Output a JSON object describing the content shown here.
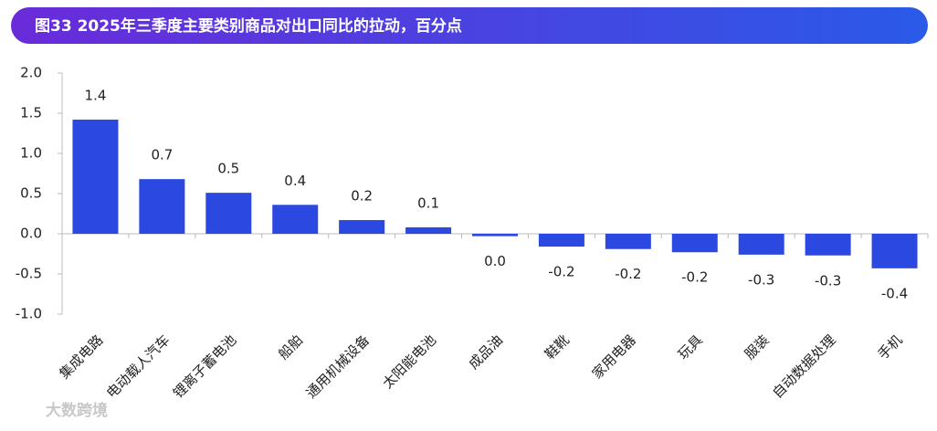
{
  "chart_data": {
    "type": "bar",
    "title": "图33 2025年三季度主要类别商品对出口同比的拉动，百分点",
    "categories": [
      "集成电路",
      "电动载人汽车",
      "锂离子蓄电池",
      "船舶",
      "通用机械设备",
      "太阳能电池",
      "成品油",
      "鞋靴",
      "家用电器",
      "玩具",
      "服装",
      "自动数据处理",
      "手机"
    ],
    "values": [
      1.42,
      0.68,
      0.51,
      0.36,
      0.17,
      0.08,
      -0.03,
      -0.16,
      -0.19,
      -0.23,
      -0.26,
      -0.27,
      -0.43
    ],
    "value_labels": [
      "1.4",
      "0.7",
      "0.5",
      "0.4",
      "0.2",
      "0.1",
      "0.0",
      "-0.2",
      "-0.2",
      "-0.2",
      "-0.3",
      "-0.3",
      "-0.4"
    ],
    "color": "#2b48e0",
    "ylim": [
      -1.0,
      2.0
    ],
    "yticks": [
      {
        "value": 2.0,
        "label": "2.0"
      },
      1.5,
      {
        "value": 1.0,
        "label": "1.0"
      },
      0.5,
      {
        "value": 0,
        "label": "0.0"
      },
      -0.5,
      {
        "value": -1.0,
        "label": "-1.0"
      }
    ],
    "watermark": "大数跨境"
  }
}
